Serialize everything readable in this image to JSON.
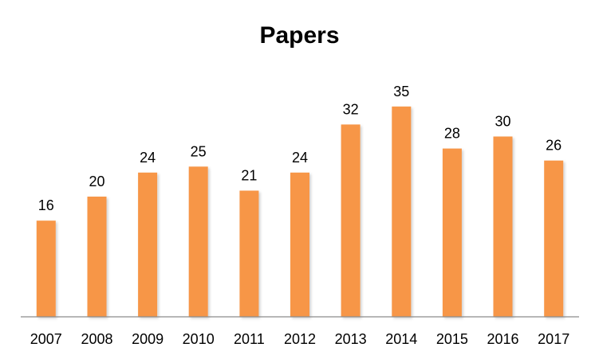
{
  "chart_data": {
    "type": "bar",
    "title": "Papers",
    "categories": [
      "2007",
      "2008",
      "2009",
      "2010",
      "2011",
      "2012",
      "2013",
      "2014",
      "2015",
      "2016",
      "2017"
    ],
    "series": [
      {
        "values": [
          16,
          20,
          24,
          25,
          21,
          24,
          32,
          35,
          28,
          30,
          26
        ]
      }
    ],
    "xlabel": "",
    "ylabel": "",
    "ylim": [
      0,
      35
    ],
    "grid": false,
    "data_labels": true,
    "bar_color": "#F79646"
  }
}
